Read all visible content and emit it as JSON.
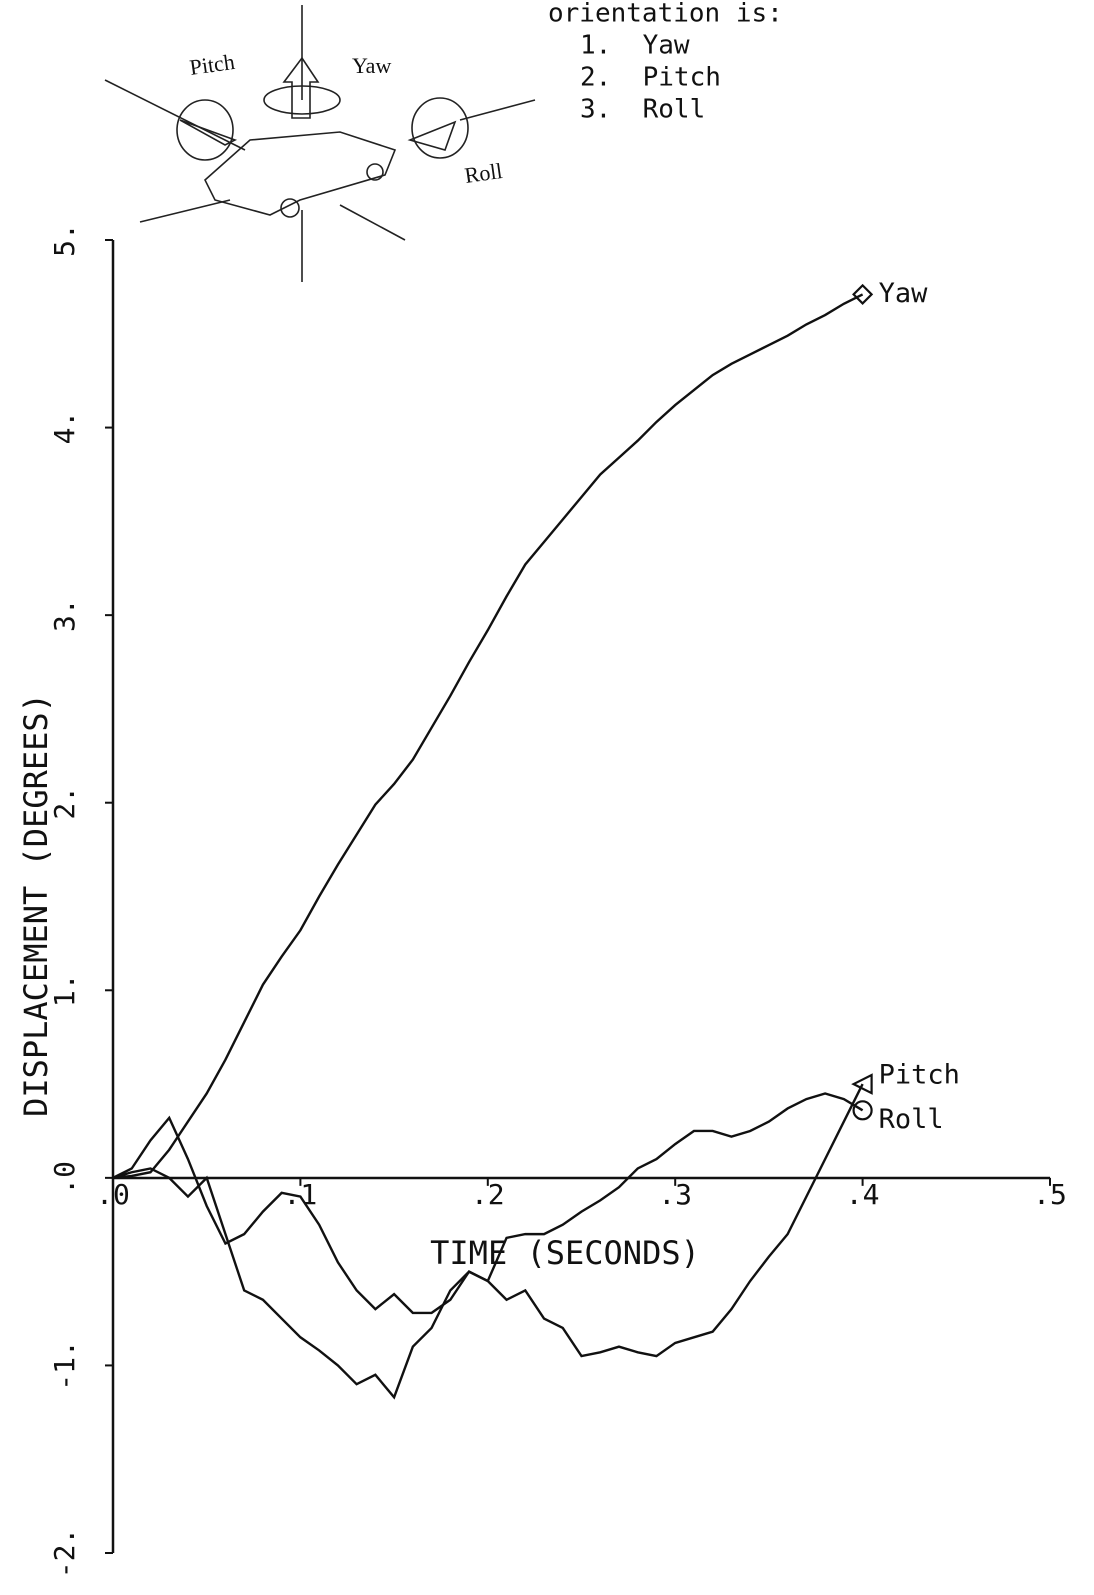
{
  "chart_data": {
    "type": "line",
    "xlabel": "TIME (SECONDS)",
    "ylabel": "DISPLACEMENT (DEGREES)",
    "annotations": [
      "orientation is:",
      "1.  Yaw",
      "2.  Pitch",
      "3.  Roll"
    ],
    "diagram_labels": [
      "Pitch",
      "Yaw",
      "Roll"
    ],
    "x": [
      0,
      0.01,
      0.02,
      0.03,
      0.04,
      0.05,
      0.06,
      0.07,
      0.08,
      0.09,
      0.1,
      0.11,
      0.12,
      0.13,
      0.14,
      0.15,
      0.16,
      0.17,
      0.18,
      0.19,
      0.2,
      0.21,
      0.22,
      0.23,
      0.24,
      0.25,
      0.26,
      0.27,
      0.28,
      0.29,
      0.3,
      0.31,
      0.32,
      0.33,
      0.34,
      0.35,
      0.36,
      0.37,
      0.38,
      0.39,
      0.4
    ],
    "series": [
      {
        "name": "Yaw",
        "color": "#111111",
        "marker": "diamond",
        "values": [
          0,
          0.01,
          0.03,
          0.15,
          0.3,
          0.45,
          0.63,
          0.83,
          1.03,
          1.18,
          1.32,
          1.5,
          1.67,
          1.83,
          1.99,
          2.1,
          2.23,
          2.4,
          2.57,
          2.75,
          2.92,
          3.1,
          3.27,
          3.39,
          3.51,
          3.63,
          3.75,
          3.84,
          3.93,
          4.03,
          4.12,
          4.2,
          4.28,
          4.34,
          4.39,
          4.44,
          4.49,
          4.55,
          4.6,
          4.66,
          4.71
        ]
      },
      {
        "name": "Pitch",
        "color": "#111111",
        "marker": "triangle",
        "values": [
          0,
          0.03,
          0.05,
          0,
          -0.1,
          0,
          -0.3,
          -0.6,
          -0.65,
          -0.75,
          -0.85,
          -0.92,
          -1.0,
          -1.1,
          -1.05,
          -1.17,
          -0.9,
          -0.8,
          -0.6,
          -0.5,
          -0.55,
          -0.65,
          -0.6,
          -0.75,
          -0.8,
          -0.95,
          -0.93,
          -0.9,
          -0.93,
          -0.95,
          -0.88,
          -0.85,
          -0.82,
          -0.7,
          -0.55,
          -0.42,
          -0.3,
          -0.1,
          0.1,
          0.3,
          0.5
        ]
      },
      {
        "name": "Roll",
        "color": "#111111",
        "marker": "circle",
        "values": [
          0,
          0.05,
          0.2,
          0.32,
          0.1,
          -0.15,
          -0.35,
          -0.3,
          -0.18,
          -0.08,
          -0.1,
          -0.25,
          -0.45,
          -0.6,
          -0.7,
          -0.62,
          -0.72,
          -0.72,
          -0.65,
          -0.5,
          -0.55,
          -0.32,
          -0.3,
          -0.3,
          -0.25,
          -0.18,
          -0.12,
          -0.05,
          0.05,
          0.1,
          0.18,
          0.25,
          0.25,
          0.22,
          0.25,
          0.3,
          0.37,
          0.42,
          0.45,
          0.42,
          0.36
        ]
      }
    ],
    "xlim": [
      0,
      0.5
    ],
    "xticks": [
      {
        "value": 0,
        "label": ".0"
      },
      {
        "value": 0.1,
        "label": ".1"
      },
      {
        "value": 0.2,
        "label": ".2"
      },
      {
        "value": 0.3,
        "label": ".3"
      },
      {
        "value": 0.4,
        "label": ".4"
      },
      {
        "value": 0.5,
        "label": ".5"
      }
    ],
    "ylim": [
      -2,
      5
    ],
    "yticks": [
      {
        "value": -2,
        "label": "-2."
      },
      {
        "value": -1,
        "label": "-1."
      },
      {
        "value": 0,
        "label": ".0"
      },
      {
        "value": 1,
        "label": "1."
      },
      {
        "value": 2,
        "label": "2."
      },
      {
        "value": 3,
        "label": "3."
      },
      {
        "value": 4,
        "label": "4."
      },
      {
        "value": 5,
        "label": "5."
      }
    ],
    "grid": false
  }
}
